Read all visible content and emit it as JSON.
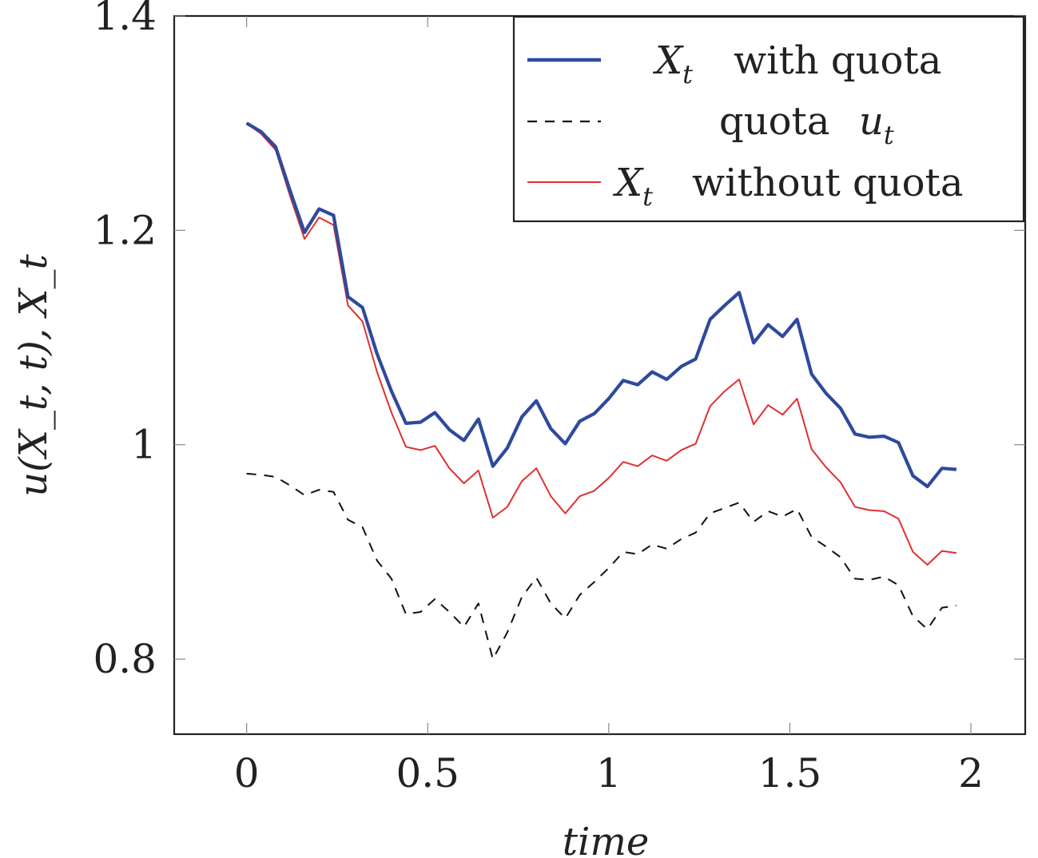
{
  "chart_data": {
    "type": "line",
    "xlabel": "time",
    "ylabel": "u(X_t, t),   X_t",
    "xlim": [
      -0.2,
      2.15
    ],
    "ylim": [
      0.73,
      1.4
    ],
    "xticks": [
      0,
      0.5,
      1,
      1.5,
      2
    ],
    "xtick_labels": [
      "0",
      "0.5",
      "1",
      "1.5",
      "2"
    ],
    "yticks": [
      0.8,
      1,
      1.2,
      1.4
    ],
    "ytick_labels": [
      "0.8",
      "1",
      "1.2",
      "1.4"
    ],
    "grid": false,
    "legend_position": "top-right",
    "x": [
      0,
      0.04,
      0.08,
      0.12,
      0.16,
      0.2,
      0.24,
      0.28,
      0.32,
      0.36,
      0.4,
      0.44,
      0.48,
      0.52,
      0.56,
      0.6,
      0.64,
      0.68,
      0.72,
      0.76,
      0.8,
      0.84,
      0.88,
      0.92,
      0.96,
      1.0,
      1.04,
      1.08,
      1.12,
      1.16,
      1.2,
      1.24,
      1.28,
      1.32,
      1.36,
      1.4,
      1.44,
      1.48,
      1.52,
      1.56,
      1.6,
      1.64,
      1.68,
      1.72,
      1.76,
      1.8,
      1.84,
      1.88,
      1.92,
      1.96
    ],
    "series": [
      {
        "name": "X_t with quota",
        "legend_label": "with quota",
        "color": "#2e4a9e",
        "style": "solid-thick",
        "values": [
          1.3,
          1.292,
          1.278,
          1.237,
          1.198,
          1.22,
          1.214,
          1.138,
          1.128,
          1.085,
          1.05,
          1.02,
          1.021,
          1.03,
          1.014,
          1.004,
          1.024,
          0.98,
          0.997,
          1.026,
          1.041,
          1.015,
          1.001,
          1.022,
          1.029,
          1.043,
          1.06,
          1.056,
          1.068,
          1.061,
          1.073,
          1.08,
          1.117,
          1.13,
          1.142,
          1.095,
          1.112,
          1.101,
          1.117,
          1.066,
          1.048,
          1.034,
          1.01,
          1.007,
          1.008,
          1.002,
          0.971,
          0.961,
          0.978,
          0.977
        ]
      },
      {
        "name": "quota u_t",
        "legend_label": "quota",
        "color": "#111111",
        "style": "dashed",
        "values": [
          0.973,
          0.972,
          0.97,
          0.962,
          0.953,
          0.958,
          0.956,
          0.93,
          0.923,
          0.892,
          0.875,
          0.842,
          0.844,
          0.856,
          0.844,
          0.83,
          0.852,
          0.8,
          0.825,
          0.858,
          0.876,
          0.852,
          0.838,
          0.86,
          0.872,
          0.885,
          0.9,
          0.898,
          0.907,
          0.903,
          0.912,
          0.918,
          0.936,
          0.941,
          0.946,
          0.928,
          0.938,
          0.933,
          0.94,
          0.914,
          0.905,
          0.895,
          0.875,
          0.874,
          0.877,
          0.869,
          0.84,
          0.828,
          0.848,
          0.85
        ]
      },
      {
        "name": "X_t without quota",
        "legend_label": "without quota",
        "color": "#e03030",
        "style": "solid-thin",
        "values": [
          1.3,
          1.29,
          1.275,
          1.232,
          1.192,
          1.212,
          1.205,
          1.13,
          1.115,
          1.068,
          1.03,
          0.998,
          0.995,
          0.999,
          0.978,
          0.964,
          0.976,
          0.932,
          0.942,
          0.966,
          0.978,
          0.952,
          0.936,
          0.952,
          0.957,
          0.969,
          0.984,
          0.98,
          0.99,
          0.985,
          0.995,
          1.001,
          1.036,
          1.05,
          1.061,
          1.019,
          1.037,
          1.028,
          1.043,
          0.996,
          0.979,
          0.965,
          0.942,
          0.939,
          0.938,
          0.931,
          0.9,
          0.888,
          0.901,
          0.899
        ]
      }
    ]
  }
}
